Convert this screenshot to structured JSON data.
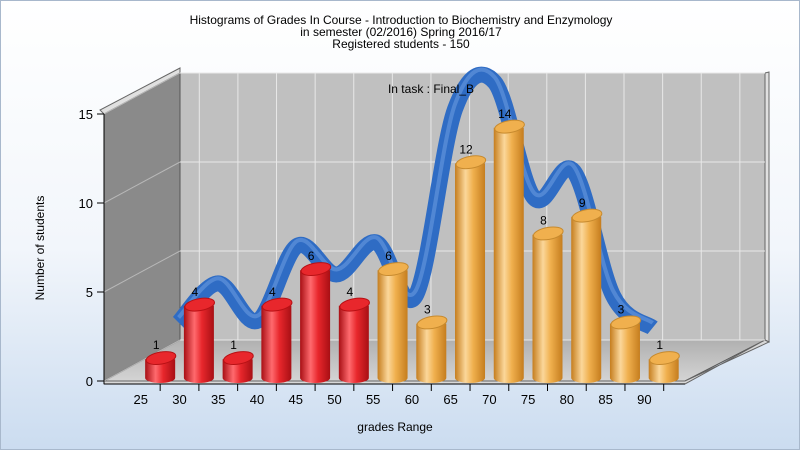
{
  "chart_data": {
    "type": "bar",
    "title_lines": [
      "Histograms of Grades  In Course - Introduction to Biochemistry and Enzymology",
      "in semester  (02/2016) Spring 2016/17",
      "Registered students - 150"
    ],
    "annotation": "In task : Final_B",
    "xlabel": "grades Range",
    "ylabel": "Number of students",
    "categories": [
      "25",
      "30",
      "35",
      "40",
      "45",
      "50",
      "55",
      "60",
      "65",
      "70",
      "75",
      "80",
      "85",
      "90"
    ],
    "values": [
      1,
      4,
      1,
      4,
      6,
      4,
      6,
      3,
      12,
      14,
      8,
      9,
      3,
      1
    ],
    "bar_colors": [
      "#e8272c",
      "#e8272c",
      "#e8272c",
      "#e8272c",
      "#e8272c",
      "#e8272c",
      "#f0b04e",
      "#f0b04e",
      "#f0b04e",
      "#f0b04e",
      "#f0b04e",
      "#f0b04e",
      "#f0b04e",
      "#f0b04e"
    ],
    "curve_values": [
      2.5,
      4.7,
      2.6,
      6.8,
      5.2,
      7.0,
      4.0,
      14.5,
      16.0,
      9.5,
      11.0,
      4.0,
      2.2
    ],
    "curve_color": "#2f6cc4",
    "yticks": [
      0,
      5,
      10,
      15
    ],
    "ylim": [
      0,
      15
    ],
    "grid": true
  }
}
